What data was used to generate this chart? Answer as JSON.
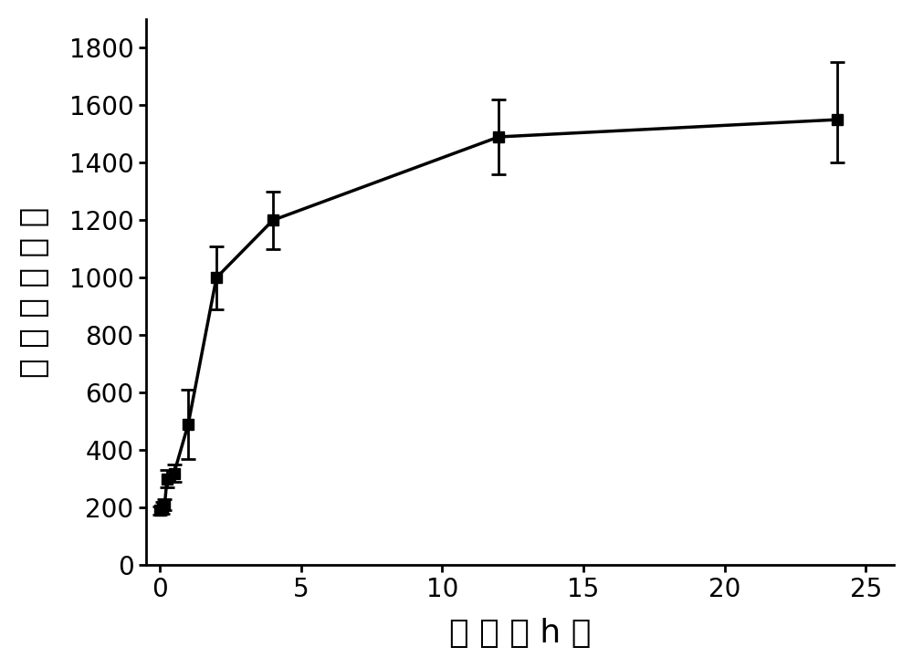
{
  "x": [
    0,
    0.083,
    0.167,
    0.25,
    0.5,
    1.0,
    2.0,
    4.0,
    12.0,
    24.0
  ],
  "y": [
    190,
    200,
    210,
    300,
    320,
    490,
    1000,
    1200,
    1490,
    1550
  ],
  "yerr_pos": [
    15,
    20,
    20,
    30,
    30,
    120,
    110,
    100,
    130,
    200
  ],
  "yerr_neg": [
    15,
    20,
    20,
    30,
    30,
    120,
    110,
    100,
    130,
    150
  ],
  "xlim": [
    -0.5,
    26
  ],
  "ylim": [
    0,
    1900
  ],
  "xticks": [
    0,
    5,
    10,
    15,
    20,
    25
  ],
  "yticks": [
    0,
    200,
    400,
    600,
    800,
    1000,
    1200,
    1400,
    1600,
    1800
  ],
  "xlabel": "时 间 （ h ）",
  "ylabel": "相 对 荧 光 强 度",
  "linecolor": "#000000",
  "markercolor": "#000000",
  "background": "#ffffff",
  "linewidth": 2.5,
  "markersize": 9,
  "tick_fontsize": 20,
  "label_fontsize": 26
}
